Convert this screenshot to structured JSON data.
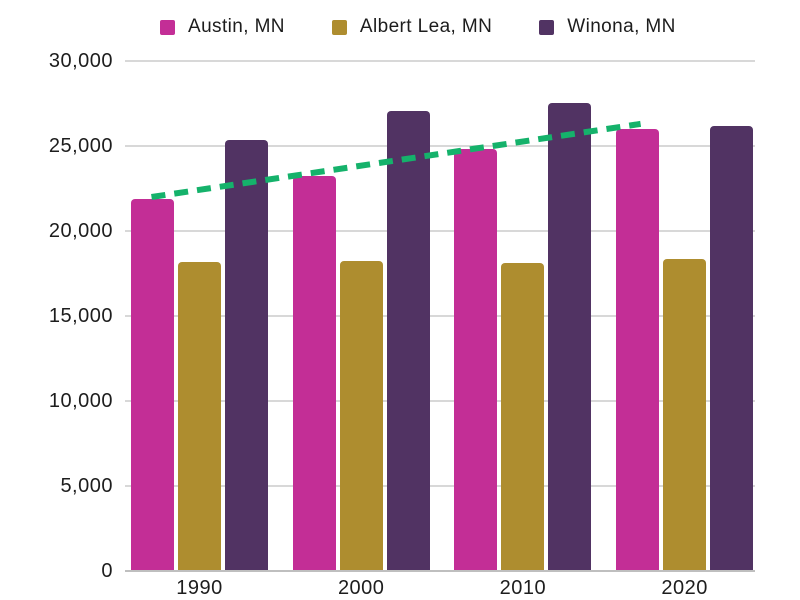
{
  "chart_data": {
    "type": "bar",
    "title": "",
    "categories": [
      "1990",
      "2000",
      "2010",
      "2020"
    ],
    "series": [
      {
        "name": "Austin, MN",
        "color": "#c32e96",
        "values": [
          21900,
          23250,
          24850,
          26000
        ]
      },
      {
        "name": "Albert Lea, MN",
        "color": "#ae8d2f",
        "values": [
          18200,
          18250,
          18100,
          18350
        ]
      },
      {
        "name": "Winona, MN",
        "color": "#513363",
        "values": [
          25350,
          27050,
          27550,
          26150
        ]
      }
    ],
    "trendline": {
      "for_series": "Austin, MN",
      "style": "dashed",
      "color": "#15b26b",
      "start_value": 22000,
      "end_value": 26300
    },
    "ylim": [
      0,
      30000
    ],
    "ytick_interval": 5000,
    "ytick_labels": [
      "0",
      "5,000",
      "10,000",
      "15,000",
      "20,000",
      "25,000",
      "30,000"
    ],
    "xlabel": "",
    "ylabel": "",
    "grid": "horizontal",
    "legend_position": "top",
    "colors": {
      "background": "#ffffff",
      "gridline": "#d8d8d8",
      "axis_line": "#bfbfbf",
      "text": "#1d1d1d"
    }
  }
}
